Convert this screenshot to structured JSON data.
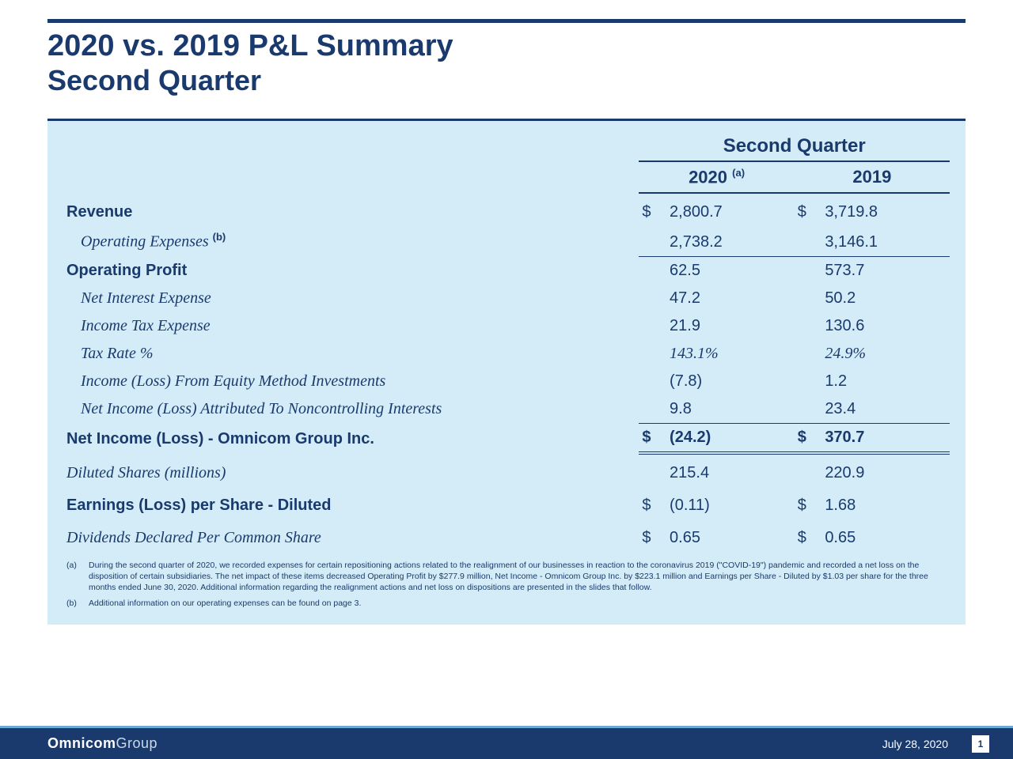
{
  "colors": {
    "brand_navy": "#1a3a6e",
    "panel_bg": "#d4ecf7",
    "accent_border": "#6aa9d8",
    "white": "#ffffff"
  },
  "title": {
    "line1": "2020 vs. 2019 P&L Summary",
    "line2": "Second Quarter"
  },
  "table": {
    "group_header": "Second Quarter",
    "year_a": "2020",
    "year_a_super": "(a)",
    "year_b": "2019",
    "rows": {
      "revenue": {
        "label": "Revenue",
        "sym": "$",
        "a": "2,800.7",
        "b": "3,719.8"
      },
      "opex": {
        "label": "Operating Expenses",
        "super": "(b)",
        "a": "2,738.2",
        "b": "3,146.1"
      },
      "opprofit": {
        "label": "Operating Profit",
        "a": "62.5",
        "b": "573.7"
      },
      "netint": {
        "label": "Net Interest Expense",
        "a": "47.2",
        "b": "50.2"
      },
      "tax": {
        "label": "Income Tax Expense",
        "a": "21.9",
        "b": "130.6"
      },
      "taxrate": {
        "label": "Tax Rate %",
        "a": "143.1%",
        "b": "24.9%"
      },
      "equity": {
        "label": "Income (Loss) From Equity Method Investments",
        "a": "(7.8)",
        "b": "1.2"
      },
      "nci": {
        "label": "Net Income (Loss) Attributed To Noncontrolling Interests",
        "a": "9.8",
        "b": "23.4"
      },
      "netincome": {
        "label": "Net Income (Loss) - Omnicom Group Inc.",
        "sym": "$",
        "a": "(24.2)",
        "b": "370.7"
      },
      "dilshares": {
        "label": "Diluted Shares (millions)",
        "a": "215.4",
        "b": "220.9"
      },
      "eps": {
        "label": "Earnings (Loss) per Share - Diluted",
        "sym": "$",
        "a": "(0.11)",
        "b": "1.68"
      },
      "dividends": {
        "label": "Dividends Declared Per Common Share",
        "sym": "$",
        "a": "0.65",
        "b": "0.65"
      }
    }
  },
  "footnotes": {
    "a": {
      "mark": "(a)",
      "text": "During the second quarter of 2020, we recorded expenses for certain repositioning actions related to the realignment of our businesses in reaction to the coronavirus 2019 (\"COVID-19\") pandemic and recorded a net loss on the disposition of certain subsidiaries.  The net impact of these items decreased Operating Profit by $277.9 million, Net Income - Omnicom Group Inc. by $223.1 million and Earnings per Share - Diluted by $1.03 per share for the three months ended June 30, 2020. Additional information regarding the realignment actions and net loss on dispositions are presented in the slides that follow."
    },
    "b": {
      "mark": "(b)",
      "text": "Additional information on our operating expenses can be found on page 3."
    }
  },
  "footer": {
    "brand_bold": "Omnicom",
    "brand_light": "Group",
    "date": "July 28, 2020",
    "page": "1"
  }
}
